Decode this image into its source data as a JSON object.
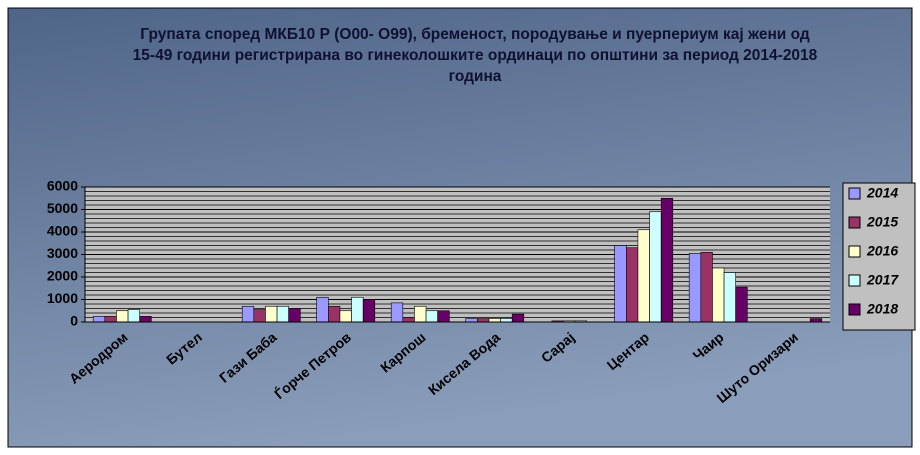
{
  "chart_data": {
    "type": "bar",
    "title": "Групата според МКБ10 Р (О00- О99), бременост, породување и пуерпериум кај жени од 15-49 години регистрирана во гинеколошките ординаци по општини за период 2014-2018 година",
    "categories": [
      "Аеродром",
      "Бутел",
      "Гази Баба",
      "Ѓорче Петров",
      "Карпош",
      "Кисела Вода",
      "Сарај",
      "Центар",
      "Чаир",
      "Шуто Оризари"
    ],
    "series": [
      {
        "name": "2014",
        "color": "#9999ff",
        "values": [
          250,
          0,
          700,
          1100,
          850,
          150,
          0,
          3400,
          3050,
          0
        ]
      },
      {
        "name": "2015",
        "color": "#993366",
        "values": [
          250,
          0,
          550,
          700,
          200,
          150,
          50,
          3300,
          3100,
          0
        ]
      },
      {
        "name": "2016",
        "color": "#ffffcc",
        "values": [
          500,
          0,
          700,
          500,
          700,
          150,
          50,
          4100,
          2400,
          0
        ]
      },
      {
        "name": "2017",
        "color": "#ccffff",
        "values": [
          550,
          0,
          700,
          1100,
          500,
          150,
          50,
          4900,
          2200,
          0
        ]
      },
      {
        "name": "2018",
        "color": "#660066",
        "values": [
          250,
          0,
          600,
          1000,
          500,
          350,
          0,
          5500,
          1550,
          150
        ]
      }
    ],
    "ylim": [
      0,
      6000
    ],
    "yticks": [
      0,
      1000,
      2000,
      3000,
      4000,
      5000,
      6000
    ],
    "grid": true,
    "legend": "right"
  }
}
